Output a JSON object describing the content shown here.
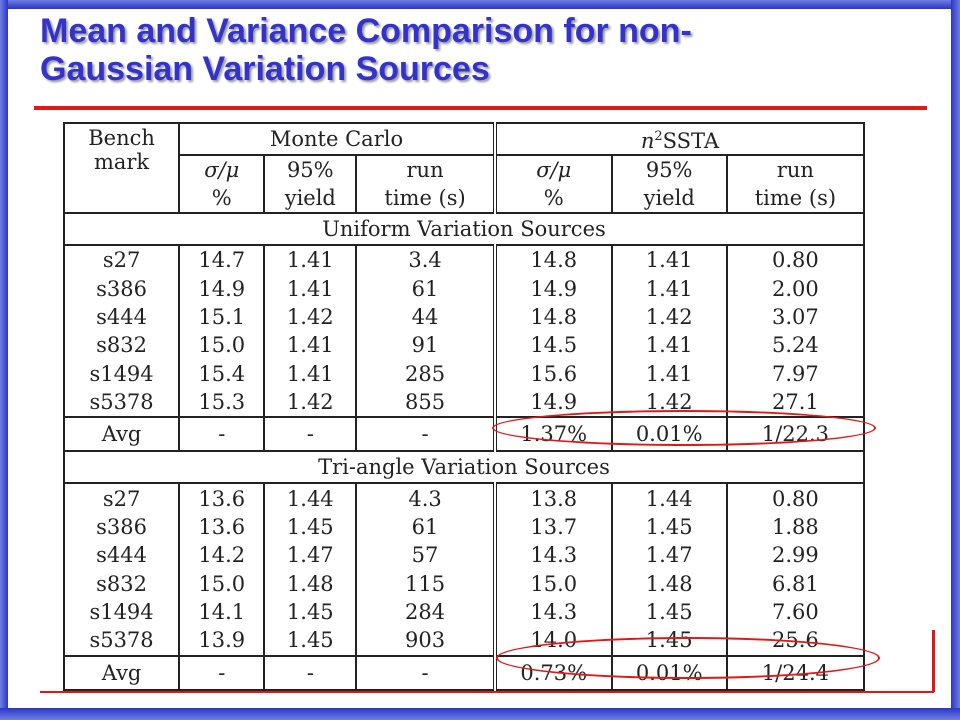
{
  "slide": {
    "title_line1": "Mean and Variance Comparison for non-",
    "title_line2": "Gaussian Variation Sources"
  },
  "table": {
    "header": {
      "bench_line1": "Bench",
      "bench_line2": "mark",
      "mc_group": "Monte Carlo",
      "nssta_base": "n",
      "nssta_sup": "2",
      "nssta_rest": "SSTA",
      "col_sigma_line1": "σ/μ",
      "col_sigma_line2": "%",
      "col_yield_line1": "95%",
      "col_yield_line2": "yield",
      "col_run_line1": "run",
      "col_run_line2": "time (s)"
    },
    "sections": [
      {
        "title": "Uniform Variation Sources",
        "rows": [
          [
            "s27",
            "14.7",
            "1.41",
            "3.4",
            "14.8",
            "1.41",
            "0.80"
          ],
          [
            "s386",
            "14.9",
            "1.41",
            "61",
            "14.9",
            "1.41",
            "2.00"
          ],
          [
            "s444",
            "15.1",
            "1.42",
            "44",
            "14.8",
            "1.42",
            "3.07"
          ],
          [
            "s832",
            "15.0",
            "1.41",
            "91",
            "14.5",
            "1.41",
            "5.24"
          ],
          [
            "s1494",
            "15.4",
            "1.41",
            "285",
            "15.6",
            "1.41",
            "7.97"
          ],
          [
            "s5378",
            "15.3",
            "1.42",
            "855",
            "14.9",
            "1.42",
            "27.1"
          ]
        ],
        "avg": [
          "Avg",
          "-",
          "-",
          "-",
          "1.37%",
          "0.01%",
          "1/22.3"
        ]
      },
      {
        "title": "Tri-angle Variation Sources",
        "rows": [
          [
            "s27",
            "13.6",
            "1.44",
            "4.3",
            "13.8",
            "1.44",
            "0.80"
          ],
          [
            "s386",
            "13.6",
            "1.45",
            "61",
            "13.7",
            "1.45",
            "1.88"
          ],
          [
            "s444",
            "14.2",
            "1.47",
            "57",
            "14.3",
            "1.47",
            "2.99"
          ],
          [
            "s832",
            "15.0",
            "1.48",
            "115",
            "15.0",
            "1.48",
            "6.81"
          ],
          [
            "s1494",
            "14.1",
            "1.45",
            "284",
            "14.3",
            "1.45",
            "7.60"
          ],
          [
            "s5378",
            "13.9",
            "1.45",
            "903",
            "14.0",
            "1.45",
            "25.6"
          ]
        ],
        "avg": [
          "Avg",
          "-",
          "-",
          "-",
          "0.73%",
          "0.01%",
          "1/24.4"
        ]
      }
    ]
  },
  "colors": {
    "title": "#3333cc",
    "accent_rule": "#e01818",
    "frame": "#3a44d0"
  }
}
